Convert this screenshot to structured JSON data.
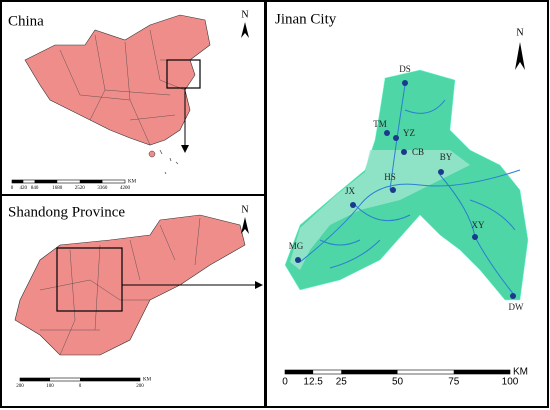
{
  "panels": {
    "china": {
      "title": "China",
      "north": "N",
      "scale": {
        "labels": [
          0,
          420,
          840,
          1680,
          2520,
          3360,
          4200
        ],
        "unit": "KM"
      }
    },
    "shandong": {
      "title": "Shandong Province",
      "north": "N",
      "scale": {
        "labels": [
          200,
          100,
          0,
          200
        ],
        "unit": "KM"
      }
    },
    "jinan": {
      "title": "Jinan City",
      "north": "N",
      "scale": {
        "labels": [
          0,
          12.5,
          25,
          50,
          75,
          100
        ],
        "unit": "KM"
      },
      "stations": [
        {
          "label": "DS"
        },
        {
          "label": "TM"
        },
        {
          "label": "YZ"
        },
        {
          "label": "CB"
        },
        {
          "label": "BY"
        },
        {
          "label": "JX"
        },
        {
          "label": "HS"
        },
        {
          "label": "XY"
        },
        {
          "label": "MG"
        },
        {
          "label": "DW"
        }
      ]
    }
  }
}
